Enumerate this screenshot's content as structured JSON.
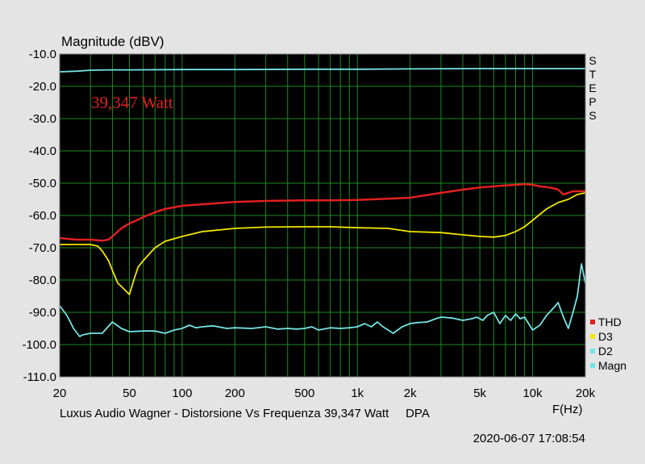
{
  "chart_data": {
    "type": "line",
    "title": "Magnitude (dBV)",
    "xlabel": "F(Hz)",
    "xscale": "log",
    "xlim": [
      20,
      20000
    ],
    "ylim": [
      -110,
      -10
    ],
    "y_ticks": [
      -10,
      -20,
      -30,
      -40,
      -50,
      -60,
      -70,
      -80,
      -90,
      -100,
      -110
    ],
    "y_tick_labels": [
      "-10.0",
      "-20.0",
      "-30.0",
      "-40.0",
      "-50.0",
      "-60.0",
      "-70.0",
      "-80.0",
      "-90.0",
      "-100.0",
      "-110.0"
    ],
    "x_ticks": [
      20,
      50,
      100,
      200,
      500,
      1000,
      2000,
      5000,
      10000,
      20000
    ],
    "x_tick_labels": [
      "20",
      "50",
      "100",
      "200",
      "500",
      "1k",
      "2k",
      "5k",
      "10k",
      "20k"
    ],
    "grid": true,
    "background": "#000000",
    "grid_color": "#1f8a1f",
    "legend_position": "right-bottom",
    "annotation": "39,347 Watt",
    "annotation_color": "#e0201f",
    "side_label": "STEPS",
    "footer": "Luxus Audio Wagner - Distorsione Vs Frequenza 39,347 Watt     DPA",
    "timestamp": "2020-06-07 17:08:54",
    "series": [
      {
        "name": "THD",
        "color": "#e0201f",
        "x": [
          20,
          25,
          30,
          35,
          38,
          40,
          45,
          50,
          55,
          60,
          70,
          80,
          100,
          150,
          200,
          300,
          500,
          700,
          1000,
          1500,
          2000,
          3000,
          4000,
          5000,
          6000,
          7000,
          8000,
          9000,
          10000,
          11000,
          12000,
          13000,
          14000,
          15000,
          16000,
          17000,
          18000,
          20000
        ],
        "values": [
          -67.0,
          -67.5,
          -67.5,
          -67.8,
          -67.5,
          -66.5,
          -64.0,
          -62.5,
          -61.5,
          -60.5,
          -59.0,
          -58.0,
          -57.0,
          -56.3,
          -55.8,
          -55.5,
          -55.3,
          -55.3,
          -55.2,
          -54.8,
          -54.5,
          -53.0,
          -52.0,
          -51.3,
          -51.0,
          -50.7,
          -50.5,
          -50.3,
          -50.5,
          -51.0,
          -51.2,
          -51.5,
          -52.0,
          -53.5,
          -53.0,
          -52.5,
          -52.5,
          -52.5
        ]
      },
      {
        "name": "D3",
        "color": "#f2e600",
        "x": [
          20,
          25,
          30,
          33,
          35,
          38,
          40,
          43,
          46,
          50,
          53,
          56,
          60,
          70,
          80,
          100,
          130,
          200,
          300,
          500,
          700,
          1000,
          1500,
          2000,
          3000,
          4000,
          5000,
          6000,
          7000,
          8000,
          9000,
          10000,
          12000,
          14000,
          16000,
          18000,
          20000
        ],
        "values": [
          -69.0,
          -69.0,
          -69.0,
          -69.5,
          -71.0,
          -74.0,
          -77.0,
          -81.0,
          -82.5,
          -84.5,
          -80.0,
          -76.0,
          -74.0,
          -70.0,
          -68.0,
          -66.5,
          -65.0,
          -64.0,
          -63.6,
          -63.5,
          -63.5,
          -63.8,
          -64.0,
          -65.0,
          -65.3,
          -66.0,
          -66.5,
          -66.7,
          -66.2,
          -65.0,
          -63.5,
          -61.5,
          -58.0,
          -56.0,
          -55.0,
          -53.5,
          -53.0
        ]
      },
      {
        "name": "D2",
        "color": "#74e4e4",
        "x": [
          20,
          21,
          22,
          23,
          24,
          26,
          27,
          30,
          32,
          35,
          40,
          45,
          50,
          60,
          70,
          80,
          90,
          100,
          110,
          120,
          130,
          150,
          180,
          200,
          250,
          300,
          350,
          400,
          450,
          500,
          550,
          600,
          700,
          800,
          900,
          1000,
          1100,
          1200,
          1300,
          1400,
          1500,
          1600,
          1800,
          2000,
          2200,
          2500,
          2800,
          3000,
          3500,
          4000,
          4500,
          4800,
          5200,
          5500,
          6000,
          6500,
          7000,
          7500,
          8000,
          8500,
          9000,
          10000,
          11000,
          12000,
          13000,
          14000,
          15000,
          16000,
          17000,
          18000,
          19000,
          20000
        ],
        "values": [
          -88.0,
          -89.5,
          -91.0,
          -93.0,
          -95.0,
          -97.5,
          -97.0,
          -96.5,
          -96.5,
          -96.5,
          -93.0,
          -95.0,
          -96.0,
          -95.8,
          -95.8,
          -96.5,
          -95.5,
          -95.0,
          -94.0,
          -94.8,
          -94.5,
          -94.2,
          -95.0,
          -94.8,
          -95.0,
          -94.5,
          -95.2,
          -95.0,
          -95.2,
          -95.0,
          -94.5,
          -95.5,
          -94.8,
          -95.0,
          -94.8,
          -94.5,
          -93.5,
          -94.5,
          -93.0,
          -94.5,
          -95.5,
          -96.5,
          -94.5,
          -93.5,
          -93.2,
          -93.0,
          -92.0,
          -91.5,
          -91.8,
          -92.5,
          -92.0,
          -91.5,
          -92.5,
          -91.0,
          -90.0,
          -93.5,
          -91.0,
          -92.5,
          -90.5,
          -92.0,
          -91.5,
          -95.5,
          -94.0,
          -91.0,
          -89.0,
          -87.0,
          -91.5,
          -95.0,
          -90.0,
          -85.0,
          -75.0,
          -81.0
        ]
      },
      {
        "name": "Magn",
        "color": "#74e4e4",
        "x": [
          20,
          25,
          30,
          40,
          50,
          100,
          200,
          500,
          1000,
          2000,
          5000,
          10000,
          20000
        ],
        "values": [
          -15.5,
          -15.3,
          -15.0,
          -14.9,
          -14.9,
          -14.8,
          -14.8,
          -14.7,
          -14.7,
          -14.6,
          -14.5,
          -14.5,
          -14.5
        ]
      }
    ]
  }
}
